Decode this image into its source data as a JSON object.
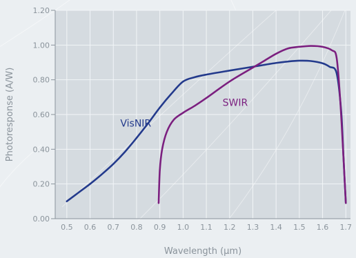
{
  "chart_data": {
    "type": "line",
    "xlabel": "Wavelength (µm)",
    "ylabel": "Photoresponse (A/W)",
    "xlim": [
      0.45,
      1.72
    ],
    "ylim": [
      0,
      1.2
    ],
    "x_ticks": [
      0.5,
      0.6,
      0.7,
      0.8,
      0.9,
      1.0,
      1.1,
      1.2,
      1.3,
      1.4,
      1.5,
      1.6,
      1.7
    ],
    "x_tick_labels": [
      "0.5",
      "0.6",
      "0.7",
      "0.8",
      "0.9",
      "1.0",
      "1.1",
      "1.2",
      "1.3",
      "1.4",
      "1.5",
      "1.6",
      "1.7"
    ],
    "y_ticks": [
      0,
      0.2,
      0.4,
      0.6,
      0.8,
      1.0,
      1.2
    ],
    "y_tick_labels": [
      "0.00",
      "0.20",
      "0.40",
      "0.60",
      "0.80",
      "1.00",
      "1.20"
    ],
    "grid": true,
    "background_color": "#ebeff2",
    "plot_background_color": "#d5dbe0",
    "grid_color": "#f2f5f7",
    "series": [
      {
        "name": "VisNIR",
        "color": "#233a8c",
        "points": [
          [
            0.5,
            0.1
          ],
          [
            0.55,
            0.15
          ],
          [
            0.6,
            0.2
          ],
          [
            0.65,
            0.255
          ],
          [
            0.7,
            0.315
          ],
          [
            0.75,
            0.385
          ],
          [
            0.8,
            0.465
          ],
          [
            0.85,
            0.55
          ],
          [
            0.9,
            0.64
          ],
          [
            0.95,
            0.72
          ],
          [
            1.0,
            0.79
          ],
          [
            1.05,
            0.815
          ],
          [
            1.1,
            0.83
          ],
          [
            1.2,
            0.853
          ],
          [
            1.3,
            0.875
          ],
          [
            1.4,
            0.897
          ],
          [
            1.45,
            0.905
          ],
          [
            1.5,
            0.91
          ],
          [
            1.55,
            0.908
          ],
          [
            1.6,
            0.895
          ],
          [
            1.63,
            0.875
          ],
          [
            1.66,
            0.84
          ],
          [
            1.68,
            0.62
          ],
          [
            1.69,
            0.35
          ],
          [
            1.7,
            0.09
          ]
        ]
      },
      {
        "name": "SWIR",
        "color": "#7b1f7f",
        "points": [
          [
            0.895,
            0.09
          ],
          [
            0.9,
            0.28
          ],
          [
            0.91,
            0.4
          ],
          [
            0.93,
            0.5
          ],
          [
            0.96,
            0.57
          ],
          [
            1.0,
            0.61
          ],
          [
            1.05,
            0.65
          ],
          [
            1.1,
            0.695
          ],
          [
            1.2,
            0.79
          ],
          [
            1.3,
            0.87
          ],
          [
            1.35,
            0.91
          ],
          [
            1.4,
            0.95
          ],
          [
            1.45,
            0.98
          ],
          [
            1.5,
            0.99
          ],
          [
            1.55,
            0.995
          ],
          [
            1.6,
            0.99
          ],
          [
            1.64,
            0.97
          ],
          [
            1.66,
            0.93
          ],
          [
            1.675,
            0.7
          ],
          [
            1.69,
            0.35
          ],
          [
            1.7,
            0.09
          ]
        ]
      }
    ],
    "series_labels": [
      {
        "text": "VisNIR",
        "x": 0.73,
        "y": 0.53,
        "color": "#233a8c"
      },
      {
        "text": "SWIR",
        "x": 1.17,
        "y": 0.65,
        "color": "#7b1f7f"
      }
    ]
  }
}
